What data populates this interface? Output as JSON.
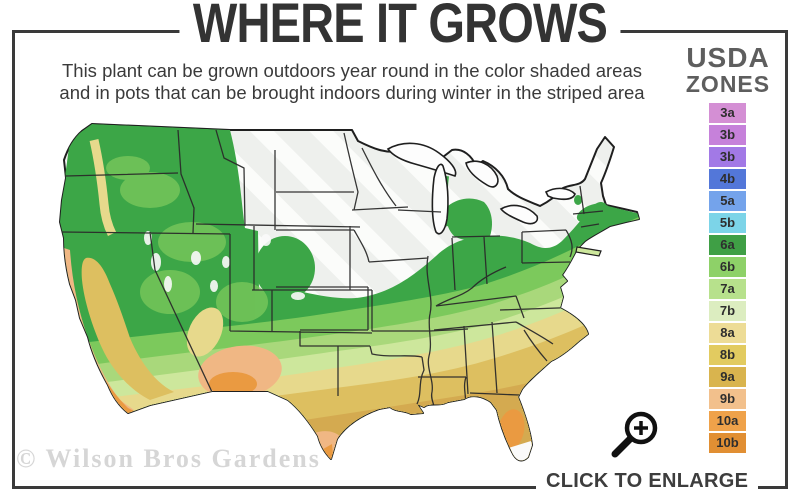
{
  "header": {
    "title": "WHERE IT GROWS",
    "subtitle_line1": "This plant can be grown outdoors year round in the color shaded areas",
    "subtitle_line2": "and in pots that can be brought indoors during winter in the striped area"
  },
  "legend": {
    "title_line1": "USDA",
    "title_line2": "ZONES",
    "zones": [
      {
        "label": "3a",
        "color": "#d48fd4"
      },
      {
        "label": "3b",
        "color": "#c681da"
      },
      {
        "label": "3b",
        "color": "#a279e6"
      },
      {
        "label": "4b",
        "color": "#5377d9"
      },
      {
        "label": "5a",
        "color": "#74a3eb"
      },
      {
        "label": "5b",
        "color": "#7cd4e8"
      },
      {
        "label": "6a",
        "color": "#3f9f45"
      },
      {
        "label": "6b",
        "color": "#8ed168"
      },
      {
        "label": "7a",
        "color": "#b7e18c"
      },
      {
        "label": "7b",
        "color": "#dcedc0"
      },
      {
        "label": "8a",
        "color": "#eddc96"
      },
      {
        "label": "8b",
        "color": "#e2cb60"
      },
      {
        "label": "9a",
        "color": "#d9b44e"
      },
      {
        "label": "9b",
        "color": "#f2c08c"
      },
      {
        "label": "10a",
        "color": "#efa24a"
      },
      {
        "label": "10b",
        "color": "#e18f33"
      }
    ]
  },
  "map": {
    "palette": {
      "striped_base": "#eef0ed",
      "stripe": "#fbfcfa",
      "outline": "#1f1f1f",
      "state_line": "#2a2a2a",
      "green": "#3ca647",
      "green_light": "#7cc95c",
      "green_pale": "#a9d87b",
      "green_very_pale": "#cde79c",
      "khaki": "#e7d98c",
      "gold": "#ddbf60",
      "tan": "#d4aa50",
      "peach": "#f0b784",
      "orange": "#ea9a41",
      "lake": "#fdfdfd",
      "white_patch": "#fafafa"
    }
  },
  "footer": {
    "watermark": "© Wilson Bros Gardens",
    "enlarge_label": "CLICK TO ENLARGE"
  },
  "colors": {
    "border": "#3a3a3a",
    "title_text": "#333333",
    "subtitle_text": "#3a3a3a",
    "legend_title": "#5e5e5e",
    "watermark_text": "#d6d6d6",
    "enlarge_text": "#3d3d3d",
    "icon": "#111111"
  }
}
